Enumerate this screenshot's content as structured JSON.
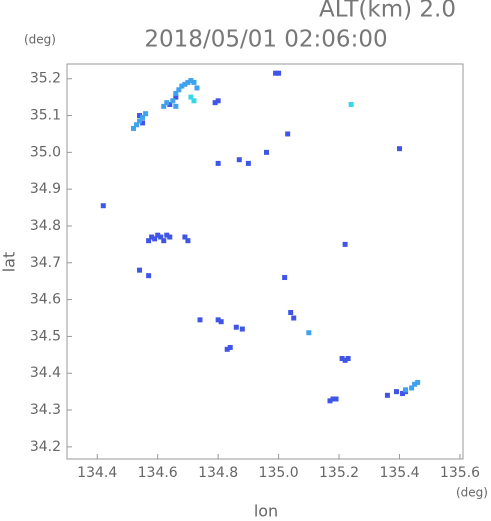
{
  "chart_data": {
    "type": "scatter",
    "title": "2018/05/01 02:06:00",
    "subtitle": "ALT(km) 2.0",
    "x_label": "lon",
    "y_label": "lat",
    "x_unit": "(deg)",
    "y_unit": "(deg)",
    "xlim": [
      134.3,
      135.61
    ],
    "ylim": [
      34.167,
      35.24
    ],
    "xticks": [
      134.4,
      134.6,
      134.8,
      {
        "value": 135.0,
        "label": "135.0"
      },
      135.2,
      135.4,
      135.6
    ],
    "yticks": [
      34.2,
      34.3,
      34.4,
      34.5,
      34.6,
      34.7,
      34.8,
      34.9,
      {
        "value": 35.0,
        "label": "35.0"
      },
      35.1,
      35.2
    ],
    "series": [
      {
        "color": "#3f55e6",
        "x": [
          134.54,
          134.55,
          134.64,
          134.66,
          134.79,
          134.8,
          134.99,
          135.0,
          135.03,
          134.8,
          134.87,
          134.9,
          134.96,
          134.57,
          134.58,
          134.59,
          134.6,
          134.61,
          134.62,
          134.63,
          134.64,
          134.69,
          134.7,
          134.54,
          134.57,
          135.02,
          135.04,
          135.05,
          134.74,
          134.8,
          134.81,
          134.83,
          134.84,
          134.86,
          134.88,
          135.21,
          135.22,
          135.23,
          135.17,
          135.18,
          135.19,
          135.36,
          135.39,
          135.41,
          135.42,
          134.42,
          135.22,
          135.4
        ],
        "y": [
          35.1,
          35.08,
          35.13,
          35.15,
          35.135,
          35.14,
          35.215,
          35.215,
          35.05,
          34.97,
          34.98,
          34.97,
          35.0,
          34.76,
          34.77,
          34.765,
          34.775,
          34.77,
          34.76,
          34.775,
          34.77,
          34.77,
          34.76,
          34.68,
          34.665,
          34.66,
          34.565,
          34.55,
          34.545,
          34.545,
          34.54,
          34.465,
          34.47,
          34.525,
          34.52,
          34.44,
          34.435,
          34.44,
          34.325,
          34.33,
          34.33,
          34.34,
          34.35,
          34.345,
          34.35,
          34.855,
          34.75,
          35.01
        ]
      },
      {
        "color": "#3fa2ee",
        "x": [
          134.52,
          134.53,
          134.54,
          134.55,
          134.56,
          134.62,
          134.63,
          134.65,
          134.66,
          134.67,
          134.68,
          134.69,
          134.7,
          134.71,
          134.72,
          134.73,
          134.66,
          135.1,
          135.42,
          135.44,
          135.45,
          135.46
        ],
        "y": [
          35.065,
          35.075,
          35.085,
          35.095,
          35.105,
          35.125,
          35.135,
          35.14,
          35.16,
          35.17,
          35.18,
          35.185,
          35.19,
          35.195,
          35.19,
          35.175,
          35.125,
          34.51,
          34.355,
          34.36,
          34.37,
          34.375
        ]
      },
      {
        "color": "#36d8e8",
        "x": [
          135.24,
          134.71,
          134.72
        ],
        "y": [
          35.13,
          35.15,
          35.14
        ]
      }
    ]
  }
}
